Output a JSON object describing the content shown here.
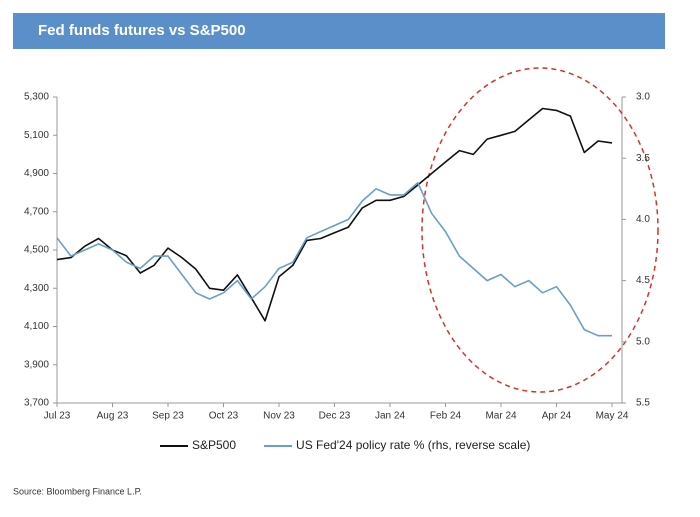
{
  "chart_data": {
    "type": "line",
    "title": "Fed funds futures vs S&P500",
    "source": "Source: Bloomberg Finance L.P.",
    "categories": [
      "Jul 23",
      null,
      null,
      null,
      "Aug 23",
      null,
      null,
      null,
      "Sep 23",
      null,
      null,
      null,
      "Oct 23",
      null,
      null,
      null,
      "Nov 23",
      null,
      null,
      null,
      "Dec 23",
      null,
      null,
      null,
      "Jan 24",
      null,
      null,
      null,
      "Feb 24",
      null,
      null,
      null,
      "Mar 24",
      null,
      null,
      null,
      "Apr 24",
      null,
      null,
      null,
      "May 24"
    ],
    "ylim": [
      3700,
      5300
    ],
    "yticks": [
      {
        "value": 3700,
        "label": "3,700"
      },
      {
        "value": 3900,
        "label": "3,900"
      },
      {
        "value": 4100,
        "label": "4,100"
      },
      {
        "value": 4300,
        "label": "4,300"
      },
      {
        "value": 4500,
        "label": "4,500"
      },
      {
        "value": 4700,
        "label": "4,700"
      },
      {
        "value": 4900,
        "label": "4,900"
      },
      {
        "value": 5100,
        "label": "5,100"
      },
      {
        "value": 5300,
        "label": "5,300"
      }
    ],
    "y2lim": [
      3.0,
      5.5
    ],
    "y2_reversed": true,
    "y2ticks": [
      {
        "value": 3,
        "label": "3.0"
      },
      3.5,
      {
        "value": 4,
        "label": "4.0"
      },
      4.5,
      {
        "value": 5,
        "label": "5.0"
      },
      5.5
    ],
    "series": [
      {
        "name": "S&P500",
        "color": "#111111",
        "values": [
          4450,
          4460,
          4520,
          4560,
          4500,
          4470,
          4380,
          4420,
          4510,
          4460,
          4400,
          4300,
          4290,
          4370,
          4250,
          4130,
          4360,
          4420,
          4550,
          4560,
          4590,
          4620,
          4720,
          4760,
          4760,
          4780,
          4840,
          4900,
          4960,
          5020,
          5000,
          5080,
          5100,
          5120,
          5180,
          5240,
          5230,
          5200,
          5010,
          5070,
          5060
        ]
      },
      {
        "name": "US Fed'24 policy rate % (rhs, reverse scale)",
        "color": "#6a9ec7",
        "axis": "y2",
        "values": [
          4.15,
          4.3,
          4.25,
          4.2,
          4.25,
          4.35,
          4.4,
          4.3,
          4.3,
          4.45,
          4.6,
          4.65,
          4.6,
          4.5,
          4.65,
          4.55,
          4.4,
          4.35,
          4.15,
          4.1,
          4.05,
          4.0,
          3.85,
          3.75,
          3.8,
          3.8,
          3.7,
          3.95,
          4.1,
          4.3,
          4.4,
          4.5,
          4.45,
          4.55,
          4.5,
          4.6,
          4.55,
          4.7,
          4.9,
          4.95,
          4.95
        ]
      }
    ]
  }
}
